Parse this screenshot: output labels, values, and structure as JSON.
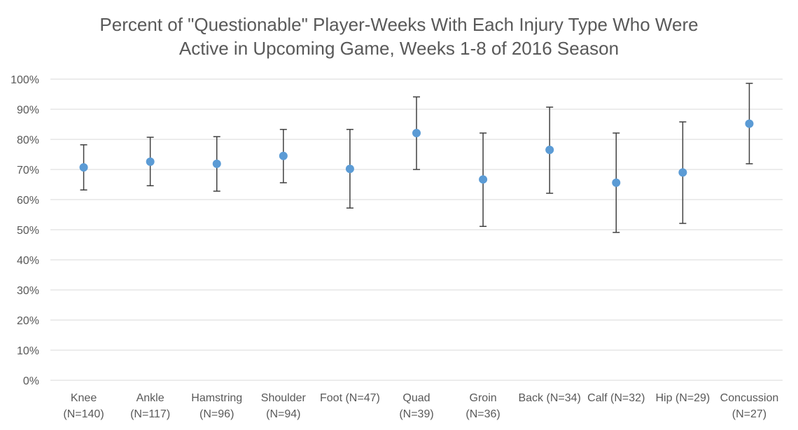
{
  "chart_data": {
    "type": "scatter",
    "title_lines": [
      "Percent of \"Questionable\" Player-Weeks With Each Injury Type Who Were",
      "Active in Upcoming Game, Weeks 1-8 of 2016 Season"
    ],
    "xlabel": "",
    "ylabel": "",
    "ylim": [
      0,
      100
    ],
    "y_ticks": [
      0,
      10,
      20,
      30,
      40,
      50,
      60,
      70,
      80,
      90,
      100
    ],
    "y_tick_labels": [
      "0%",
      "10%",
      "20%",
      "30%",
      "40%",
      "50%",
      "60%",
      "70%",
      "80%",
      "90%",
      "100%"
    ],
    "grid": true,
    "legend": "none",
    "categories": [
      {
        "lines": [
          "Knee",
          "(N=140)"
        ],
        "value": 70.7,
        "low": 63.2,
        "high": 78.2
      },
      {
        "lines": [
          "Ankle",
          "(N=117)"
        ],
        "value": 72.6,
        "low": 64.6,
        "high": 80.7
      },
      {
        "lines": [
          "Hamstring",
          "(N=96)"
        ],
        "value": 71.9,
        "low": 62.8,
        "high": 80.9
      },
      {
        "lines": [
          "Shoulder",
          "(N=94)"
        ],
        "value": 74.5,
        "low": 65.6,
        "high": 83.3
      },
      {
        "lines": [
          "Foot (N=47)"
        ],
        "value": 70.2,
        "low": 57.2,
        "high": 83.3
      },
      {
        "lines": [
          "Quad",
          "(N=39)"
        ],
        "value": 82.1,
        "low": 70.0,
        "high": 94.1
      },
      {
        "lines": [
          "Groin",
          "(N=36)"
        ],
        "value": 66.7,
        "low": 51.1,
        "high": 82.1
      },
      {
        "lines": [
          "Back (N=34)"
        ],
        "value": 76.5,
        "low": 62.1,
        "high": 90.7
      },
      {
        "lines": [
          "Calf (N=32)"
        ],
        "value": 65.6,
        "low": 49.1,
        "high": 82.1
      },
      {
        "lines": [
          "Hip (N=29)"
        ],
        "value": 69.0,
        "low": 52.1,
        "high": 85.8
      },
      {
        "lines": [
          "Concussion",
          "(N=27)"
        ],
        "value": 85.2,
        "low": 71.9,
        "high": 98.6
      }
    ],
    "colors": {
      "point": "#5B9BD5",
      "error_bar": "#404040",
      "grid": "#D9D9D9",
      "text": "#595959"
    }
  }
}
